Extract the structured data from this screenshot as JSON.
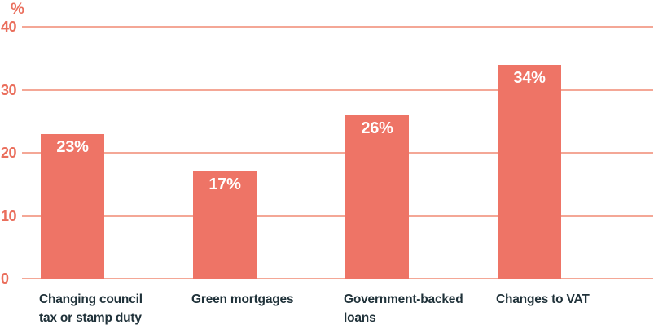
{
  "chart_data": {
    "type": "bar",
    "title": "",
    "ylabel": "%",
    "xlabel": "",
    "categories": [
      "Changing council\ntax or stamp duty",
      "Green mortgages",
      "Government-backed\nloans",
      "Changes to VAT"
    ],
    "values": [
      23,
      17,
      26,
      34
    ],
    "bar_labels": [
      "23%",
      "17%",
      "26%",
      "34%"
    ],
    "yticks": [
      40,
      30,
      20,
      10,
      0
    ],
    "ylim": [
      0,
      40
    ],
    "grid": true,
    "legend": false,
    "colors": {
      "bar": "#EE7466",
      "gridline": "#F4A796",
      "tick_label": "#EA6E5C",
      "axis_unit_label": "#EA6E5C",
      "bar_value_label": "#FFFFFF",
      "category_label": "#20323A",
      "background": "#FFFFFF"
    }
  }
}
